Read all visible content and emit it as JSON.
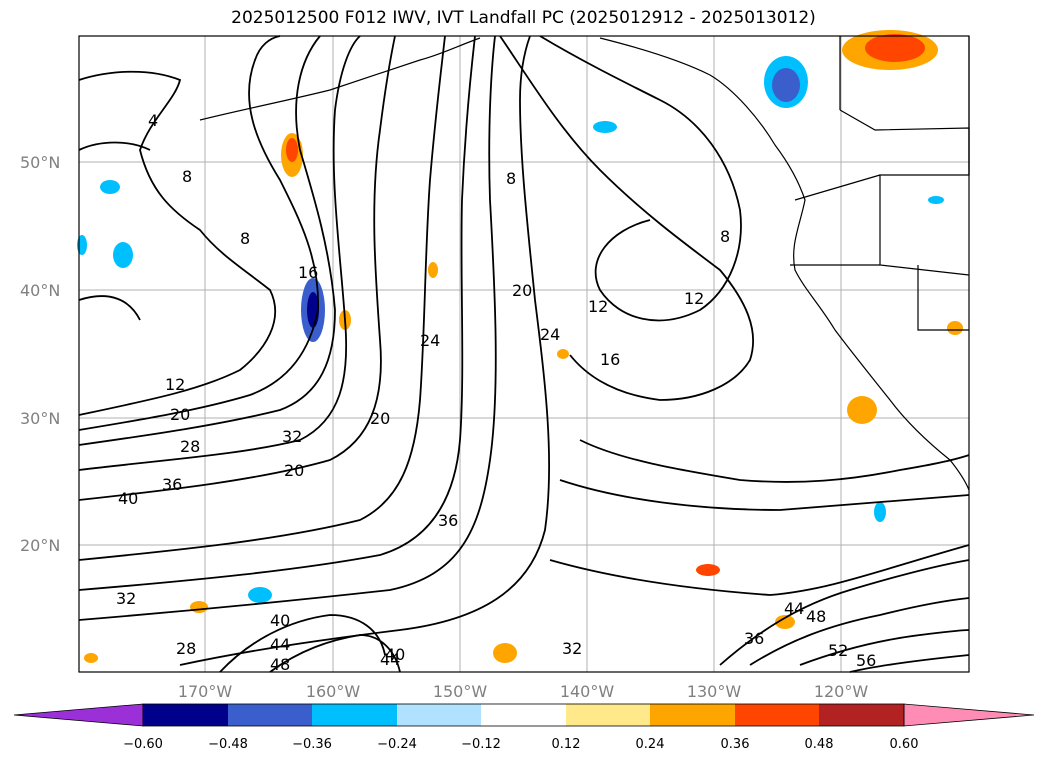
{
  "title": "2025012500 F012 IWV, IVT Landfall PC (2025012912 - 2025013012)",
  "lat_ticks": [
    "50°N",
    "40°N",
    "30°N",
    "20°N"
  ],
  "lon_ticks": [
    "170°W",
    "160°W",
    "150°W",
    "140°W",
    "130°W",
    "120°W"
  ],
  "colorbar": {
    "labels": [
      "−0.60",
      "−0.48",
      "−0.36",
      "−0.24",
      "−0.12",
      "0.12",
      "0.24",
      "0.36",
      "0.48",
      "0.60"
    ],
    "colors": [
      "#9b30d9",
      "#00008b",
      "#3a5fcd",
      "#00bfff",
      "#b0e2ff",
      "#ffffff",
      "#ffe98a",
      "#ffa500",
      "#ff4500",
      "#b22222",
      "#ff8cb4"
    ]
  },
  "contour_labels": [
    "4",
    "8",
    "8",
    "8",
    "8",
    "12",
    "12",
    "12",
    "16",
    "16",
    "20",
    "20",
    "20",
    "20",
    "24",
    "24",
    "28",
    "28",
    "32",
    "32",
    "32",
    "36",
    "36",
    "36",
    "40",
    "40",
    "40",
    "44",
    "44",
    "44",
    "48",
    "48",
    "52",
    "56"
  ]
}
